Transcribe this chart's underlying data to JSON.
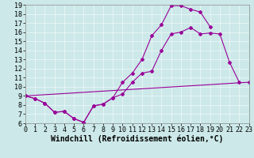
{
  "xlabel": "Windchill (Refroidissement éolien,°C)",
  "xlim": [
    0,
    23
  ],
  "ylim": [
    6,
    19
  ],
  "xticks": [
    0,
    1,
    2,
    3,
    4,
    5,
    6,
    7,
    8,
    9,
    10,
    11,
    12,
    13,
    14,
    15,
    16,
    17,
    18,
    19,
    20,
    21,
    22,
    23
  ],
  "yticks": [
    6,
    7,
    8,
    9,
    10,
    11,
    12,
    13,
    14,
    15,
    16,
    17,
    18,
    19
  ],
  "bg_color": "#cce8e8",
  "line_color": "#990099",
  "line1_x": [
    0,
    1,
    2,
    3,
    4,
    5,
    6,
    7,
    8,
    9,
    10,
    11,
    12,
    13,
    14,
    15,
    16,
    17,
    18,
    19,
    20,
    21,
    22
  ],
  "line1_y": [
    9.0,
    8.7,
    8.2,
    7.2,
    7.3,
    6.5,
    6.1,
    7.9,
    8.1,
    8.8,
    9.2,
    10.5,
    11.5,
    11.7,
    14.0,
    15.8,
    16.0,
    16.5,
    15.8,
    15.9,
    15.8,
    12.7,
    10.5
  ],
  "line2_x": [
    0,
    1,
    2,
    3,
    4,
    5,
    6,
    7,
    8,
    9,
    10,
    11,
    12,
    13,
    14,
    15,
    16,
    17,
    18,
    19
  ],
  "line2_y": [
    9.0,
    8.7,
    8.2,
    7.2,
    7.3,
    6.5,
    6.1,
    7.9,
    8.1,
    8.8,
    10.5,
    11.5,
    13.0,
    15.6,
    16.8,
    18.9,
    18.9,
    18.5,
    18.2,
    16.6
  ],
  "line3_x": [
    0,
    23
  ],
  "line3_y": [
    9.0,
    10.5
  ],
  "font_size": 7,
  "tick_font_size": 6,
  "marker": "D",
  "marker_size": 2.0,
  "lw": 0.8
}
